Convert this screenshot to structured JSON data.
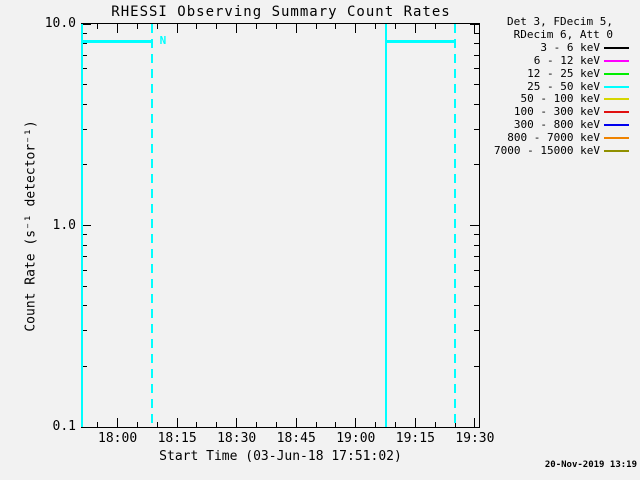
{
  "title": "RHESSI Observing Summary Count Rates",
  "footer": {
    "timestamp": "20-Nov-2019 13:19"
  },
  "colors": {
    "background": "#f2f2f2",
    "axis": "#000000",
    "flag": "#00ffff"
  },
  "legend": {
    "header": [
      "Det 3, FDecim 5,",
      "RDecim 6, Att 0"
    ],
    "entries": [
      {
        "label": "3 - 6 keV",
        "color": "#000000"
      },
      {
        "label": "6 - 12 keV",
        "color": "#ff00ff"
      },
      {
        "label": "12 - 25 keV",
        "color": "#00ee00"
      },
      {
        "label": "25 - 50 keV",
        "color": "#00ffff"
      },
      {
        "label": "50 - 100 keV",
        "color": "#d6d600"
      },
      {
        "label": "100 - 300 keV",
        "color": "#e01010"
      },
      {
        "label": "300 - 800 keV",
        "color": "#0000ee"
      },
      {
        "label": "800 - 7000 keV",
        "color": "#ef8300"
      },
      {
        "label": "7000 - 15000 keV",
        "color": "#909000"
      }
    ]
  },
  "chart_data": {
    "type": "line",
    "title": "RHESSI Observing Summary Count Rates",
    "xlabel": "Start Time (03-Jun-18 17:51:02)",
    "ylabel": "Count Rate (s⁻¹ detector⁻¹)",
    "x_start": "17:51:02",
    "x_end": "19:31:02",
    "x_major_ticks": [
      "18:00",
      "18:15",
      "18:30",
      "18:45",
      "19:00",
      "19:15",
      "19:30"
    ],
    "x_minor_ticks": [
      "17:55",
      "18:05",
      "18:10",
      "18:20",
      "18:25",
      "18:35",
      "18:40",
      "18:50",
      "18:55",
      "19:05",
      "19:10",
      "19:20",
      "19:25"
    ],
    "y_scale": "log",
    "ylim": [
      0.1,
      10.0
    ],
    "y_major_ticks": [
      {
        "value": 10.0,
        "label": "10.0"
      },
      {
        "value": 1.0,
        "label": "1.0"
      },
      {
        "value": 0.1,
        "label": "0.1"
      }
    ],
    "y_minor_ticks": [
      0.2,
      0.3,
      0.4,
      0.5,
      0.6,
      0.7,
      0.8,
      0.9,
      2,
      3,
      4,
      5,
      6,
      7,
      8,
      9
    ],
    "grid": false,
    "legend_position": "right-outside",
    "series_visible": "only night-flag marker lines are on scale; all energy-band count-rate curves are off scale / not visible",
    "night_flag": {
      "label": "N",
      "label_time": "18:10:50",
      "level": 8.2,
      "segments": [
        {
          "start": "17:51:02",
          "end": "18:08:45"
        },
        {
          "start": "19:07:30",
          "end": "19:25:00"
        }
      ],
      "vlines": [
        {
          "time": "17:51:02",
          "style": "solid"
        },
        {
          "time": "18:08:45",
          "style": "dashed"
        },
        {
          "time": "19:07:30",
          "style": "solid"
        },
        {
          "time": "19:25:00",
          "style": "dashed"
        }
      ]
    }
  }
}
